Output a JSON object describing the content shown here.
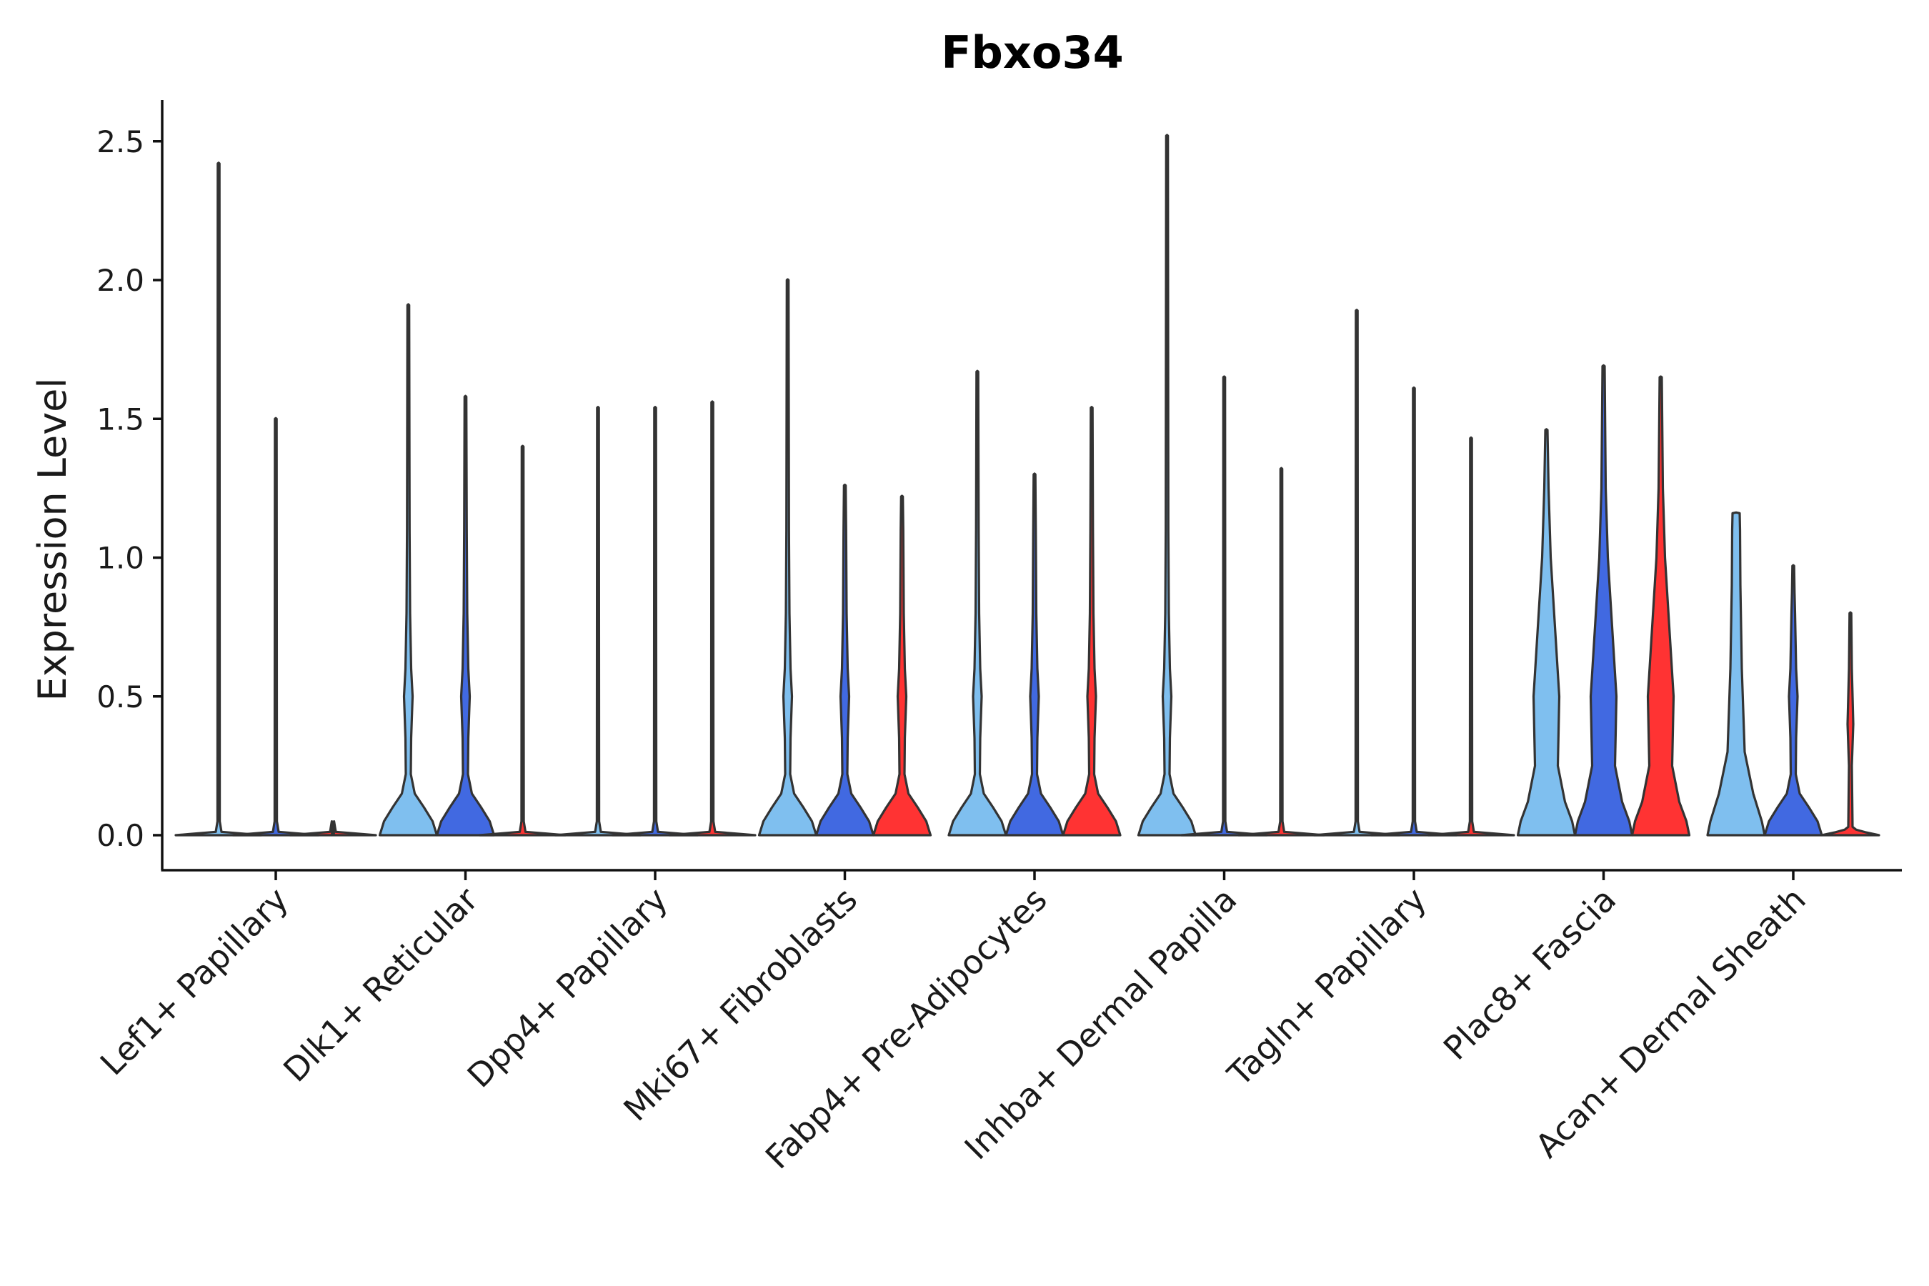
{
  "chart_data": {
    "type": "violin",
    "title": "Fbxo34",
    "xlabel": "",
    "ylabel": "Expression Level",
    "ylim": [
      -0.12,
      2.65
    ],
    "yticks": [
      0.0,
      0.5,
      1.0,
      1.5,
      2.0,
      2.5
    ],
    "ytick_labels": [
      "0.0",
      "0.5",
      "1.0",
      "1.5",
      "2.0",
      "2.5"
    ],
    "grid": false,
    "legend": "none",
    "series_colors": [
      "#7fbfef",
      "#4169e1",
      "#ff3333"
    ],
    "categories": [
      "Lef1+ Papillary",
      "Dlk1+ Reticular",
      "Dpp4+ Papillary",
      "Mki67+ Fibroblasts",
      "Fabp4+ Pre-Adipocytes",
      "Inhba+ Dermal Papilla",
      "Tagln+ Papillary",
      "Plac8+ Fascia",
      "Acan+ Dermal Sheath"
    ],
    "groups": [
      {
        "category": "Lef1+ Papillary",
        "violins": [
          {
            "series": 0,
            "max": 2.42,
            "shape": "flat"
          },
          {
            "series": 1,
            "max": 1.5,
            "shape": "flat"
          },
          {
            "series": 2,
            "max": 0.0,
            "shape": "flat"
          }
        ]
      },
      {
        "category": "Dlk1+ Reticular",
        "violins": [
          {
            "series": 0,
            "max": 1.91,
            "shape": "low_bulb"
          },
          {
            "series": 1,
            "max": 1.58,
            "shape": "low_bulb"
          },
          {
            "series": 2,
            "max": 1.4,
            "shape": "flat"
          }
        ]
      },
      {
        "category": "Dpp4+ Papillary",
        "violins": [
          {
            "series": 0,
            "max": 1.54,
            "shape": "flat"
          },
          {
            "series": 1,
            "max": 1.54,
            "shape": "flat"
          },
          {
            "series": 2,
            "max": 1.56,
            "shape": "flat"
          }
        ]
      },
      {
        "category": "Mki67+ Fibroblasts",
        "violins": [
          {
            "series": 0,
            "max": 2.0,
            "shape": "low_bulb"
          },
          {
            "series": 1,
            "max": 1.26,
            "shape": "low_bulb"
          },
          {
            "series": 2,
            "max": 1.22,
            "shape": "low_bulb"
          }
        ]
      },
      {
        "category": "Fabp4+ Pre-Adipocytes",
        "violins": [
          {
            "series": 0,
            "max": 1.67,
            "shape": "low_bulb"
          },
          {
            "series": 1,
            "max": 1.3,
            "shape": "low_bulb"
          },
          {
            "series": 2,
            "max": 1.54,
            "shape": "low_bulb"
          }
        ]
      },
      {
        "category": "Inhba+ Dermal Papilla",
        "violins": [
          {
            "series": 0,
            "max": 2.52,
            "shape": "low_bulb"
          },
          {
            "series": 1,
            "max": 1.65,
            "shape": "flat"
          },
          {
            "series": 2,
            "max": 1.32,
            "shape": "flat"
          }
        ]
      },
      {
        "category": "Tagln+ Papillary",
        "violins": [
          {
            "series": 0,
            "max": 1.89,
            "shape": "flat"
          },
          {
            "series": 1,
            "max": 1.61,
            "shape": "flat"
          },
          {
            "series": 2,
            "max": 1.43,
            "shape": "flat"
          }
        ]
      },
      {
        "category": "Plac8+ Fascia",
        "violins": [
          {
            "series": 0,
            "max": 1.46,
            "shape": "wide"
          },
          {
            "series": 1,
            "max": 1.69,
            "shape": "wide"
          },
          {
            "series": 2,
            "max": 1.65,
            "shape": "wide"
          }
        ]
      },
      {
        "category": "Acan+ Dermal Sheath",
        "violins": [
          {
            "series": 0,
            "max": 1.16,
            "shape": "wide_flat_top"
          },
          {
            "series": 1,
            "max": 0.97,
            "shape": "low_bulb"
          },
          {
            "series": 2,
            "max": 0.8,
            "shape": "low_flat"
          }
        ]
      }
    ]
  }
}
